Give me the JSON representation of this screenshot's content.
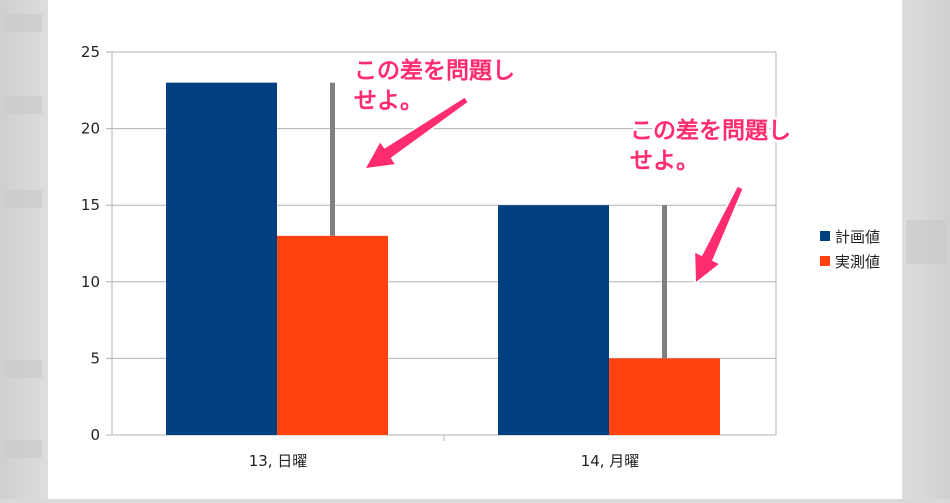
{
  "chart_data": {
    "type": "bar",
    "categories": [
      "13, 日曜",
      "14, 月曜"
    ],
    "series": [
      {
        "name": "計画値",
        "values": [
          23,
          15
        ],
        "color": "#003f80"
      },
      {
        "name": "実測値",
        "values": [
          13,
          5
        ],
        "color": "#ff420e"
      }
    ],
    "ylim": [
      0,
      25
    ],
    "yticks": [
      0,
      5,
      10,
      15,
      20,
      25
    ],
    "grid": true,
    "legend": "right",
    "title": "",
    "xlabel": "",
    "ylabel": "",
    "annotations": [
      {
        "lines": [
          "この差を問題し",
          "せよ。"
        ],
        "category": 0
      },
      {
        "lines": [
          "この差を問題し",
          "せよ。"
        ],
        "category": 1
      }
    ],
    "annotation_color": "#ff2d6f",
    "difference_line_color": "#808080"
  }
}
